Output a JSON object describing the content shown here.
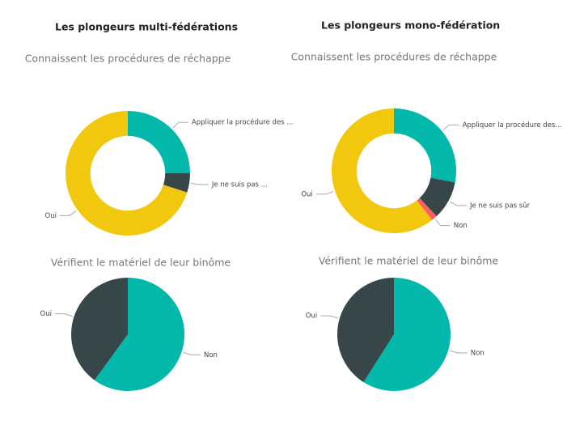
{
  "headers": [
    "Les plongeurs multi-fédérations",
    "Les plongeurs mono-fédération"
  ],
  "chart_data": [
    {
      "type": "donut",
      "title": "Connaissent les procédures de réchappe",
      "categories": [
        "Appliquer la procédure des ...",
        "Je ne suis pas ...",
        "Oui"
      ],
      "values": [
        25,
        5,
        70
      ],
      "colors": [
        "#01B8AA",
        "#374649",
        "#F2C80F"
      ]
    },
    {
      "type": "donut",
      "title": "Connaissent les procédures de réchappe",
      "categories": [
        "Appliquer la procédure des...",
        "Je ne suis pas sûr",
        "Non",
        "Oui"
      ],
      "values": [
        28,
        10,
        1.5,
        60.5
      ],
      "colors": [
        "#01B8AA",
        "#374649",
        "#FD625E",
        "#F2C80F"
      ]
    },
    {
      "type": "pie",
      "title": "Vérifient le matériel de leur binôme",
      "categories": [
        "Non",
        "Oui"
      ],
      "values": [
        60,
        40
      ],
      "colors": [
        "#01B8AA",
        "#374649"
      ]
    },
    {
      "type": "pie",
      "title": "Vérifient le matériel de leur binôme",
      "categories": [
        "Non",
        "Oui"
      ],
      "values": [
        59,
        41
      ],
      "colors": [
        "#01B8AA",
        "#374649"
      ]
    }
  ]
}
